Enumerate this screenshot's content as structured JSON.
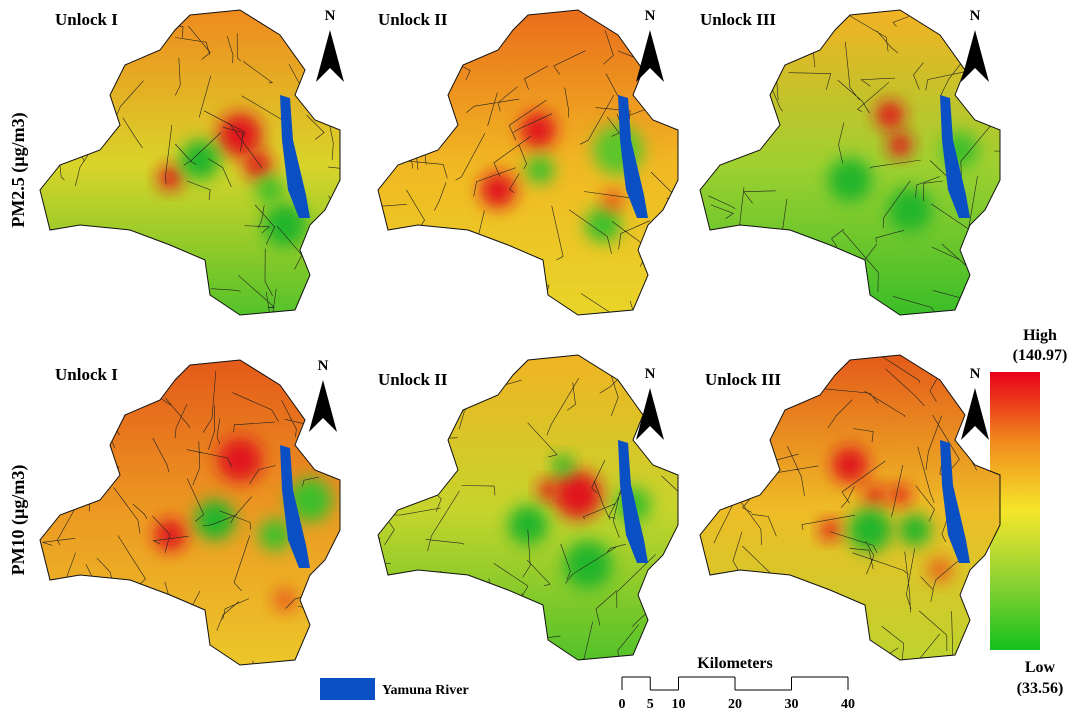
{
  "rows": [
    {
      "label": "PM2.5 (µg/m3)",
      "panels": [
        {
          "title": "Unlock I",
          "north": "N"
        },
        {
          "title": "Unlock II",
          "north": "N"
        },
        {
          "title": "Unlock III",
          "north": "N"
        }
      ]
    },
    {
      "label": "PM10 (µg/m3)",
      "panels": [
        {
          "title": "Unlock I",
          "north": "N"
        },
        {
          "title": "Unlock II",
          "north": "N"
        },
        {
          "title": "Unlock III",
          "north": "N"
        }
      ]
    }
  ],
  "legend": {
    "high": "High",
    "high_value": "(140.97)",
    "low": "Low",
    "low_value": "(33.56)",
    "river": "Yamuna River"
  },
  "scale": {
    "title": "Kilometers",
    "ticks": [
      0,
      5,
      10,
      20,
      30,
      40
    ]
  }
}
